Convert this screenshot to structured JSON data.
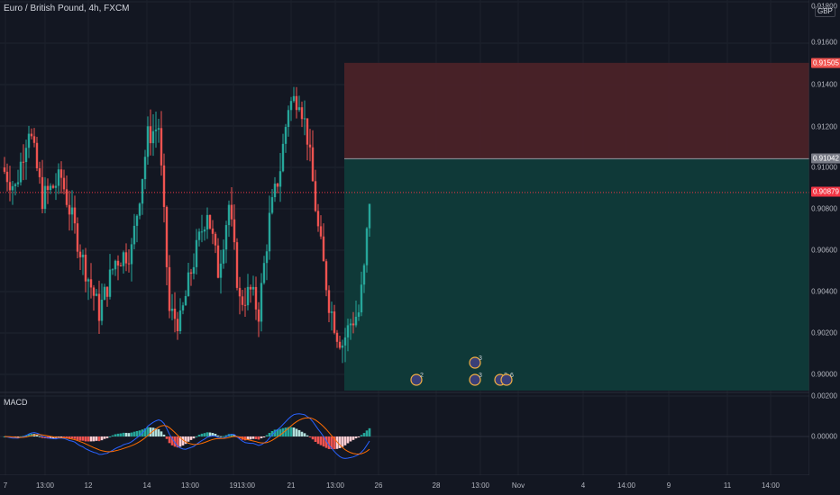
{
  "title": "Euro / British Pound, 4h, FXCM",
  "currency": "GBP",
  "macd_label": "MACD",
  "price_axis": {
    "ticks": [
      "0.91800",
      "0.91600",
      "0.91400",
      "0.91200",
      "0.91000",
      "0.90800",
      "0.90600",
      "0.90400",
      "0.90200",
      "0.90000"
    ],
    "stop_badge": "0.91505",
    "entry_badge": "0.91042",
    "current_badge": "0.90879"
  },
  "macd_axis": {
    "ticks": [
      "0.00200",
      "0.00000"
    ]
  },
  "time_axis": {
    "labels": [
      "7",
      "13:00",
      "12",
      "14",
      "13:00",
      "19",
      "13:00",
      "21",
      "13:00",
      "26",
      "28",
      "13:00",
      "Nov",
      "4",
      "14:00",
      "9",
      "11",
      "14:00"
    ]
  },
  "events": [
    {
      "label": "2"
    },
    {
      "label": "3"
    },
    {
      "label": "3"
    },
    {
      "label": "2"
    },
    {
      "label": "6"
    }
  ],
  "colors": {
    "background": "#131722",
    "up": "#26a69a",
    "down": "#ef5350",
    "stop_zone": "#ef5350",
    "target_zone": "#26a69a",
    "macd_line": "#2962ff",
    "signal_line": "#ff6d00",
    "current_badge": "#f23645"
  }
}
